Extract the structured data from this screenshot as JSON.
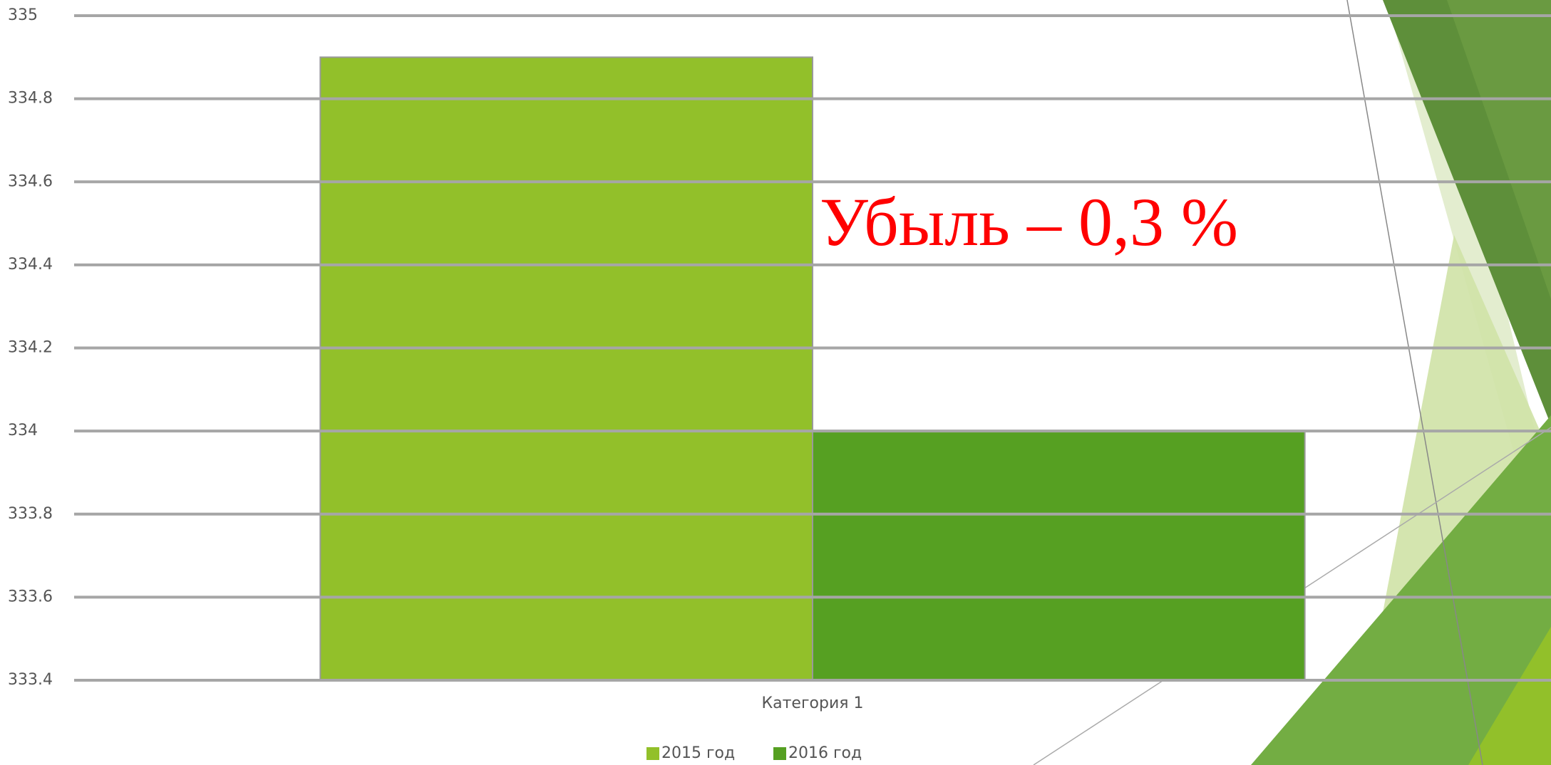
{
  "chart_data": {
    "type": "bar",
    "categories": [
      "Категория 1"
    ],
    "series": [
      {
        "name": "2015 год",
        "color": "#92c02a",
        "values": [
          334.9
        ]
      },
      {
        "name": "2016 год",
        "color": "#56a022",
        "values": [
          334.0
        ]
      }
    ],
    "ylim": [
      333.4,
      335
    ],
    "yticks": [
      333.4,
      333.6,
      333.8,
      334,
      334.2,
      334.4,
      334.6,
      334.8,
      335
    ],
    "grid": true,
    "legend": "bottom",
    "annotation": "Убыль – 0,3 %"
  }
}
